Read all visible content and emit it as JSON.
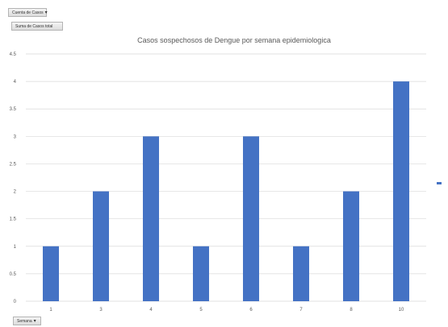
{
  "pivot_filter_button": {
    "label": "Cuenta de Casos",
    "arrow": "▾"
  },
  "pivot_value_button": {
    "label": "Suma de Casos total"
  },
  "pivot_axis_button": {
    "label": "Semana",
    "arrow": "▾"
  },
  "legend": {
    "marker_color": "#4472C4"
  },
  "chart_data": {
    "type": "bar",
    "title": "Casos sospechosos de Dengue por semana epidemiologica",
    "categories": [
      "1",
      "3",
      "4",
      "5",
      "6",
      "7",
      "8",
      "10"
    ],
    "values": [
      1,
      2,
      3,
      1,
      3,
      1,
      2,
      4
    ],
    "ylim": [
      0,
      4.5
    ],
    "yticks": [
      "0",
      "0.5",
      "1",
      "1.5",
      "2",
      "2.5",
      "3",
      "3.5",
      "4",
      "4.5"
    ],
    "grid": true,
    "bar_color": "#4472C4",
    "gridline_color": "#d9d9d9"
  }
}
